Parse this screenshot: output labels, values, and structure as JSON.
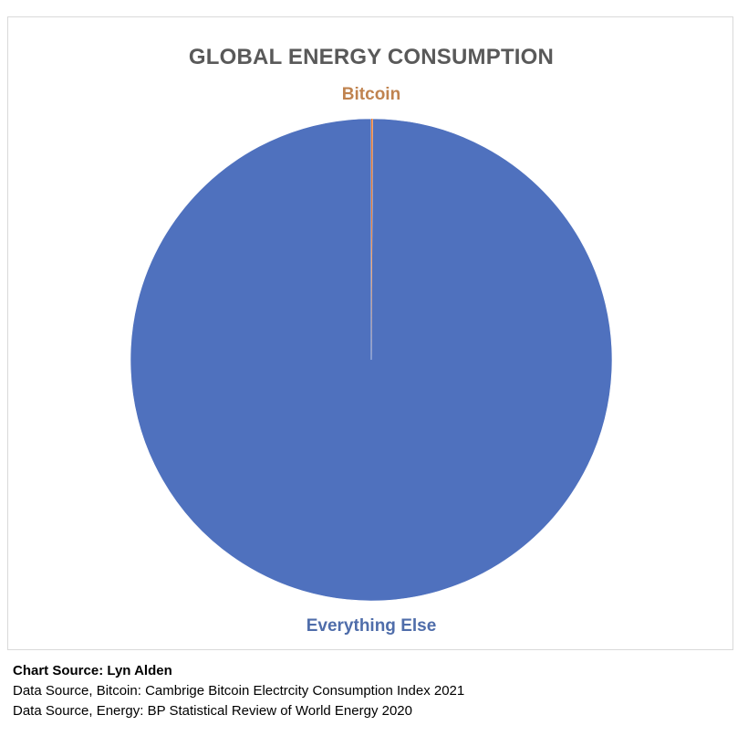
{
  "chart_data": {
    "type": "pie",
    "title": "GLOBAL ENERGY CONSUMPTION",
    "slices": [
      {
        "label": "Bitcoin",
        "value": 0.1,
        "color": "#ED7D31",
        "label_color": "#C0834F"
      },
      {
        "label": "Everything Else",
        "value": 99.9,
        "color": "#4F71BE",
        "label_color": "#4F6DAA"
      }
    ],
    "legend": "none",
    "background": "#ffffff",
    "border_color": "#d9d9d9"
  },
  "sources": {
    "chart_source": "Chart Source: Lyn Alden",
    "bitcoin_source": "Data Source, Bitcoin: Cambrige Bitcoin Electrcity Consumption Index 2021",
    "energy_source": "Data Source, Energy: BP Statistical Review of World Energy 2020"
  }
}
